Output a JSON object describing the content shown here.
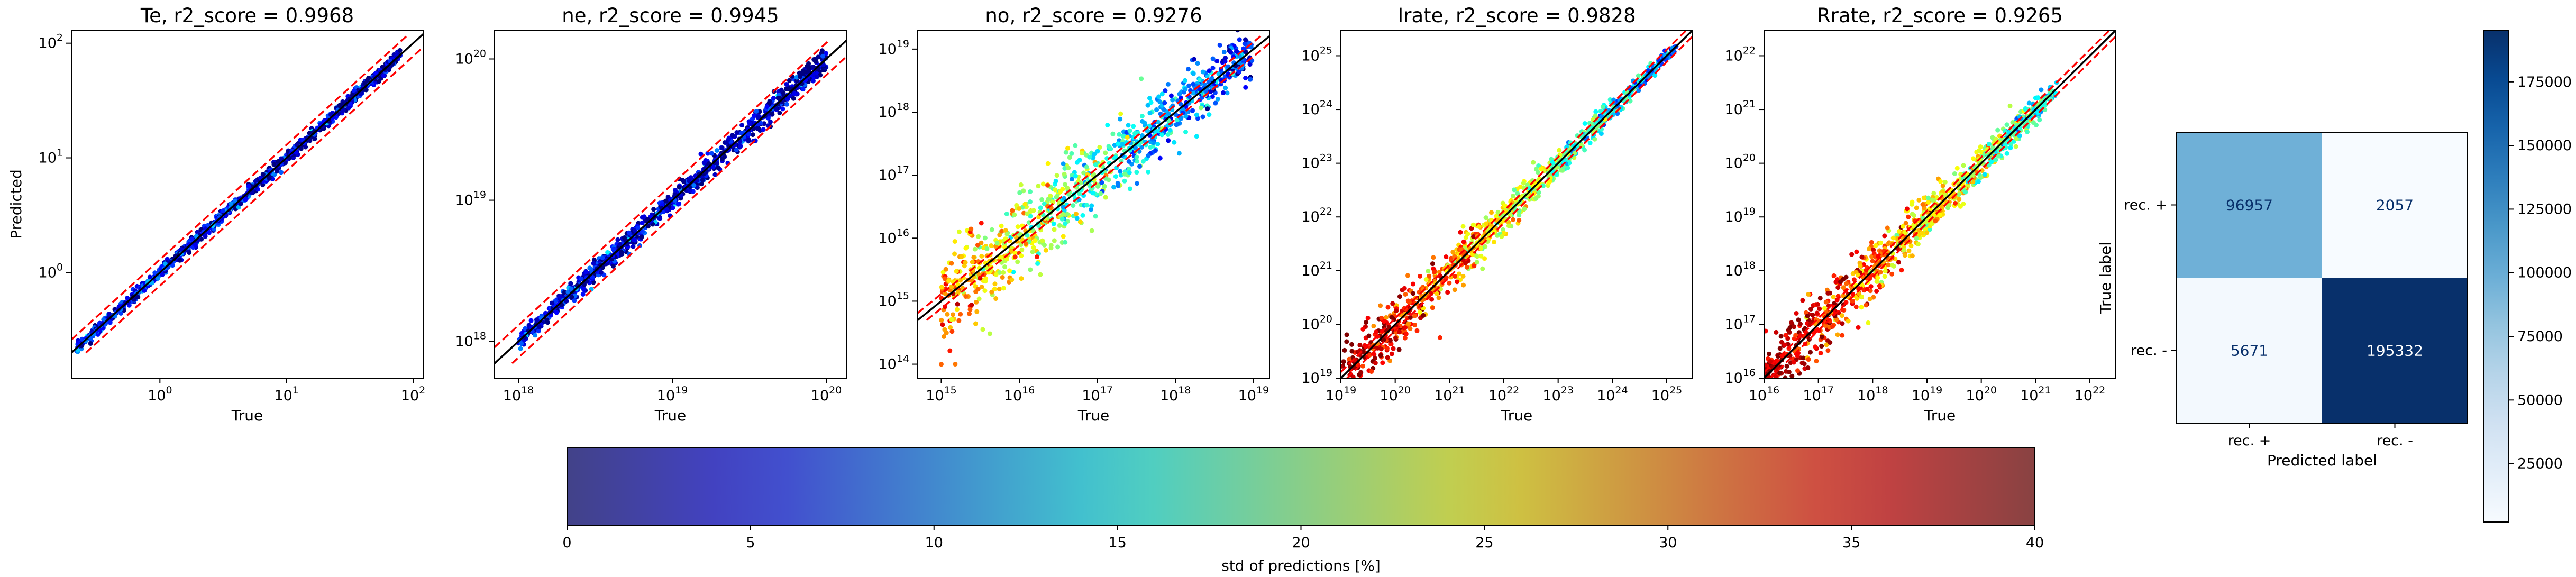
{
  "chart_data": [
    {
      "type": "scatter",
      "title": "Te, r2_score = 0.9968",
      "xlabel": "True",
      "ylabel": "Predicted",
      "scale": "log",
      "xlim": [
        0.2,
        120
      ],
      "ylim": [
        0.12,
        130
      ],
      "x_ticks": [
        {
          "v": 1,
          "mant": "10",
          "exp": "0"
        },
        {
          "v": 10,
          "mant": "10",
          "exp": "1"
        },
        {
          "v": 100,
          "mant": "10",
          "exp": "2"
        }
      ],
      "y_ticks": [
        {
          "v": 1,
          "mant": "10",
          "exp": "0"
        },
        {
          "v": 10,
          "mant": "10",
          "exp": "1"
        },
        {
          "v": 100,
          "mant": "10",
          "exp": "2"
        }
      ],
      "data_range": [
        0.22,
        80
      ],
      "spread_low": 0.05,
      "spread_high": 0.05,
      "std_pct": [
        6,
        2
      ]
    },
    {
      "type": "scatter",
      "title": "ne, r2_score = 0.9945",
      "xlabel": "True",
      "ylabel": "",
      "scale": "log",
      "xlim": [
        7e+17,
        1.35e+20
      ],
      "ylim": [
        5.5e+17,
        1.6e+20
      ],
      "x_ticks": [
        {
          "v": 1e+18,
          "mant": "10",
          "exp": "18"
        },
        {
          "v": 1e+19,
          "mant": "10",
          "exp": "19"
        },
        {
          "v": 1e+20,
          "mant": "10",
          "exp": "20"
        }
      ],
      "y_ticks": [
        {
          "v": 1e+18,
          "mant": "10",
          "exp": "18"
        },
        {
          "v": 1e+19,
          "mant": "10",
          "exp": "19"
        },
        {
          "v": 1e+20,
          "mant": "10",
          "exp": "20"
        }
      ],
      "data_range": [
        1e+18,
        1e+20
      ],
      "spread_low": 0.05,
      "spread_high": 0.1,
      "std_pct": [
        4,
        2
      ]
    },
    {
      "type": "scatter",
      "title": "no, r2_score = 0.9276",
      "xlabel": "True",
      "ylabel": "",
      "scale": "log",
      "xlim": [
        500000000000000.0,
        1.6e+19
      ],
      "ylim": [
        60000000000000.0,
        2e+19
      ],
      "x_ticks": [
        {
          "v": 1000000000000000.0,
          "mant": "10",
          "exp": "15"
        },
        {
          "v": 1e+16,
          "mant": "10",
          "exp": "16"
        },
        {
          "v": 1e+17,
          "mant": "10",
          "exp": "17"
        },
        {
          "v": 1e+18,
          "mant": "10",
          "exp": "18"
        },
        {
          "v": 1e+19,
          "mant": "10",
          "exp": "19"
        }
      ],
      "y_ticks": [
        {
          "v": 100000000000000.0,
          "mant": "10",
          "exp": "14"
        },
        {
          "v": 1000000000000000.0,
          "mant": "10",
          "exp": "15"
        },
        {
          "v": 1e+16,
          "mant": "10",
          "exp": "16"
        },
        {
          "v": 1e+17,
          "mant": "10",
          "exp": "17"
        },
        {
          "v": 1e+18,
          "mant": "10",
          "exp": "18"
        },
        {
          "v": 1e+19,
          "mant": "10",
          "exp": "19"
        }
      ],
      "data_range": [
        1000000000000000.0,
        1e+19
      ],
      "spread_low": 0.8,
      "spread_high": 0.35,
      "std_pct": [
        30,
        5
      ]
    },
    {
      "type": "scatter",
      "title": "Irate, r2_score = 0.9828",
      "xlabel": "True",
      "ylabel": "",
      "scale": "log",
      "xlim": [
        1e+19,
        3e+25
      ],
      "ylim": [
        1e+19,
        3e+25
      ],
      "x_ticks": [
        {
          "v": 1e+19,
          "mant": "10",
          "exp": "19"
        },
        {
          "v": 1e+20,
          "mant": "10",
          "exp": "20"
        },
        {
          "v": 1e+21,
          "mant": "10",
          "exp": "21"
        },
        {
          "v": 1e+22,
          "mant": "10",
          "exp": "22"
        },
        {
          "v": 1e+23,
          "mant": "10",
          "exp": "23"
        },
        {
          "v": 1e+24,
          "mant": "10",
          "exp": "24"
        },
        {
          "v": 1e+25,
          "mant": "10",
          "exp": "25"
        }
      ],
      "y_ticks": [
        {
          "v": 1e+19,
          "mant": "10",
          "exp": "19"
        },
        {
          "v": 1e+20,
          "mant": "10",
          "exp": "20"
        },
        {
          "v": 1e+21,
          "mant": "10",
          "exp": "21"
        },
        {
          "v": 1e+22,
          "mant": "10",
          "exp": "22"
        },
        {
          "v": 1e+23,
          "mant": "10",
          "exp": "23"
        },
        {
          "v": 1e+24,
          "mant": "10",
          "exp": "24"
        },
        {
          "v": 1e+25,
          "mant": "10",
          "exp": "25"
        }
      ],
      "data_range": [
        1e+19,
        1.5e+25
      ],
      "spread_low": 0.6,
      "spread_high": 0.08,
      "std_pct": [
        40,
        8
      ]
    },
    {
      "type": "scatter",
      "title": "Rrate, r2_score = 0.9265",
      "xlabel": "True",
      "ylabel": "",
      "scale": "log",
      "xlim": [
        1e+16,
        3e+22
      ],
      "ylim": [
        1e+16,
        3e+22
      ],
      "x_ticks": [
        {
          "v": 1e+16,
          "mant": "10",
          "exp": "16"
        },
        {
          "v": 1e+17,
          "mant": "10",
          "exp": "17"
        },
        {
          "v": 1e+18,
          "mant": "10",
          "exp": "18"
        },
        {
          "v": 1e+19,
          "mant": "10",
          "exp": "19"
        },
        {
          "v": 1e+20,
          "mant": "10",
          "exp": "20"
        },
        {
          "v": 1e+21,
          "mant": "10",
          "exp": "21"
        },
        {
          "v": 1e+22,
          "mant": "10",
          "exp": "22"
        }
      ],
      "y_ticks": [
        {
          "v": 1e+16,
          "mant": "10",
          "exp": "16"
        },
        {
          "v": 1e+17,
          "mant": "10",
          "exp": "17"
        },
        {
          "v": 1e+18,
          "mant": "10",
          "exp": "18"
        },
        {
          "v": 1e+19,
          "mant": "10",
          "exp": "19"
        },
        {
          "v": 1e+20,
          "mant": "10",
          "exp": "20"
        },
        {
          "v": 1e+21,
          "mant": "10",
          "exp": "21"
        },
        {
          "v": 1e+22,
          "mant": "10",
          "exp": "22"
        }
      ],
      "data_range": [
        1e+16,
        2.5e+21
      ],
      "spread_low": 0.7,
      "spread_high": 0.2,
      "std_pct": [
        40,
        15
      ]
    },
    {
      "type": "heatmap",
      "title": "",
      "xlabel": "Predicted label",
      "ylabel": "True label",
      "x_categories": [
        "rec. +",
        "rec. -"
      ],
      "y_categories": [
        "rec. +",
        "rec. -"
      ],
      "values": [
        [
          96957,
          2057
        ],
        [
          5671,
          195332
        ]
      ],
      "colorbar_ticks": [
        {
          "v": 25000,
          "label": "25000"
        },
        {
          "v": 50000,
          "label": "50000"
        },
        {
          "v": 75000,
          "label": "75000"
        },
        {
          "v": 100000,
          "label": "100000"
        },
        {
          "v": 125000,
          "label": "125000"
        },
        {
          "v": 150000,
          "label": "150000"
        },
        {
          "v": 175000,
          "label": "175000"
        }
      ],
      "colorbar_range": [
        2057,
        195332
      ],
      "colormap": "Blues"
    },
    {
      "type": "colorbar",
      "label": "std of predictions [%]",
      "range": [
        0,
        40
      ],
      "ticks": [
        {
          "v": 0,
          "label": "0"
        },
        {
          "v": 5,
          "label": "5"
        },
        {
          "v": 10,
          "label": "10"
        },
        {
          "v": 15,
          "label": "15"
        },
        {
          "v": 20,
          "label": "20"
        },
        {
          "v": 25,
          "label": "25"
        },
        {
          "v": 30,
          "label": "30"
        },
        {
          "v": 35,
          "label": "35"
        },
        {
          "v": 40,
          "label": "40"
        }
      ],
      "colormap": "jet"
    }
  ],
  "colors": {
    "identity_line": "#000000",
    "bound_lines": "#ff0000",
    "text": "#000000"
  }
}
